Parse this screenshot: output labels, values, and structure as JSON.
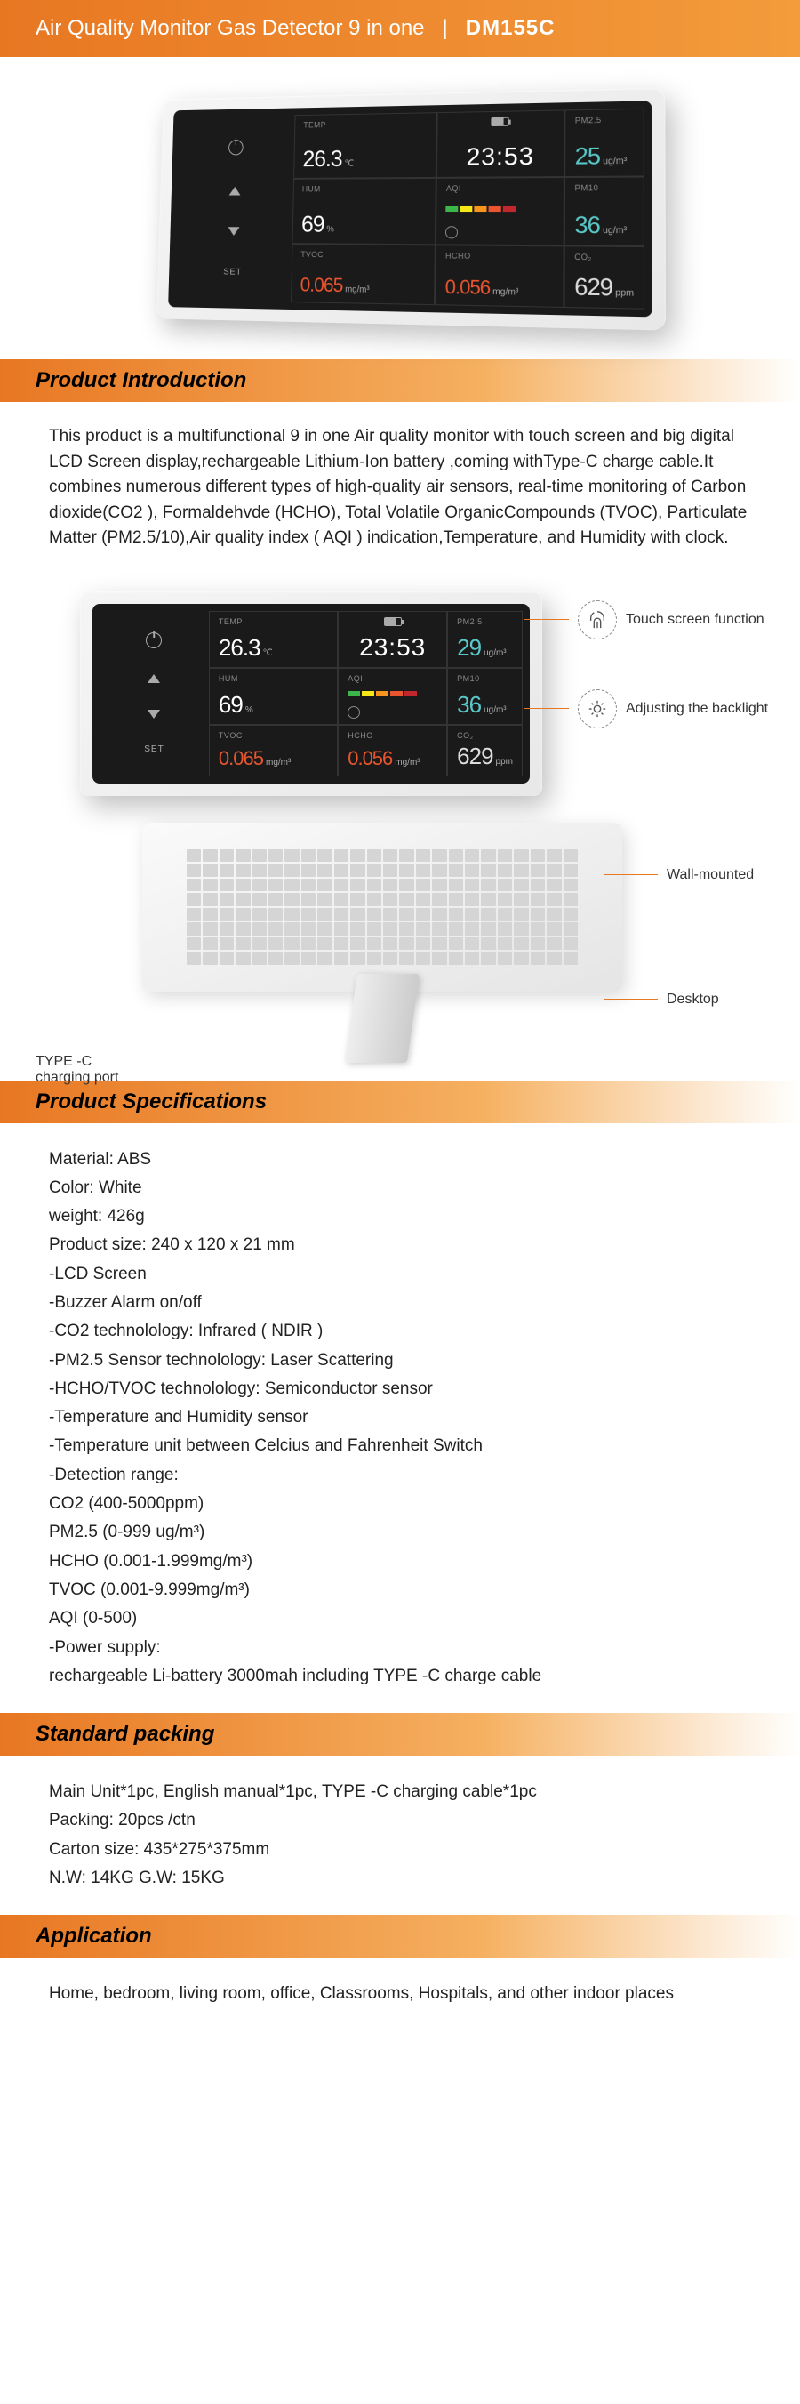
{
  "header": {
    "title": "Air Quality Monitor Gas Detector 9 in one",
    "separator": "|",
    "model": "DM155C"
  },
  "device": {
    "body_color": "#f0f0f0",
    "screen_bg": "#1a1a1a",
    "readings": {
      "temp": {
        "label": "TEMP",
        "value": "26.3",
        "unit": "℃"
      },
      "time": {
        "value": "23:53"
      },
      "pm25": {
        "label": "PM2.5",
        "value": "25",
        "unit": "ug/m³"
      },
      "hum": {
        "label": "HUM",
        "value": "69",
        "unit": "%"
      },
      "aqi": {
        "label": "AQI"
      },
      "pm10": {
        "label": "PM10",
        "value": "36",
        "unit": "ug/m³"
      },
      "tvoc": {
        "label": "TVOC",
        "value": "0.065",
        "unit": "mg/m³"
      },
      "hcho": {
        "label": "HCHO",
        "value": "0.056",
        "unit": "mg/m³"
      },
      "co2": {
        "label": "CO₂",
        "value": "629",
        "unit": "ppm"
      }
    },
    "controls": {
      "set": "SET"
    },
    "aqi_colors": [
      "#3cb54a",
      "#f7e618",
      "#f7941d",
      "#e8552f",
      "#c1272d"
    ],
    "value_colors": {
      "white": "#ffffff",
      "teal": "#5ac8c8",
      "red": "#e8552f",
      "grey": "#dddddd"
    }
  },
  "device_flat": {
    "readings": {
      "pm25_value": "29",
      "pm10_value": "36"
    }
  },
  "sections": {
    "intro_title": "Product Introduction",
    "intro_text": "This product is a multifunctional 9  in one Air quality monitor with touch screen and big digital LCD Screen display,rechargeable Lithium-Ion battery ,coming withType-C charge cable.It combines numerous different types of high-quality air sensors, real-time monitoring of Carbon dioxide(CO2 ), Formaldehvde (HCHO), Total Volatile OrganicCompounds (TVOC), Particulate Matter (PM2.5/10),Air quality index ( AQI ) indication,Temperature, and Humidity with clock.",
    "spec_title": "Product Specifications",
    "spec_lines": [
      "Material: ABS",
      "Color: White",
      "weight: 426g",
      "Product size: 240 x 120 x 21 mm",
      "-LCD Screen",
      "-Buzzer Alarm on/off",
      "-CO2 technolology: Infrared ( NDIR )",
      "-PM2.5 Sensor technolology: Laser Scattering",
      "-HCHO/TVOC technolology: Semiconductor sensor",
      "-Temperature and Humidity sensor",
      "-Temperature unit between Celcius and Fahrenheit Switch",
      "-Detection range:",
      "CO2 (400-5000ppm)",
      "PM2.5 (0-999 ug/m³)",
      "HCHO (0.001-1.999mg/m³)",
      "TVOC (0.001-9.999mg/m³)",
      "AQI (0-500)",
      "-Power supply:",
      "rechargeable Li-battery 3000mah including TYPE -C  charge cable"
    ],
    "pack_title": "Standard packing",
    "pack_lines": [
      "Main Unit*1pc, English manual*1pc, TYPE -C charging cable*1pc",
      "Packing: 20pcs /ctn",
      "Carton size: 435*275*375mm",
      "N.W: 14KG   G.W: 15KG"
    ],
    "app_title": "Application",
    "app_text": "Home, bedroom, living room, office, Classrooms, Hospitals, and other indoor places"
  },
  "callouts": {
    "touch": "Touch screen function",
    "backlight": "Adjusting the backlight",
    "wall": "Wall-mounted",
    "desktop": "Desktop",
    "port": "TYPE -C\ncharging port"
  },
  "colors": {
    "brand_orange": "#e87722",
    "brand_orange_light": "#f5b060"
  }
}
